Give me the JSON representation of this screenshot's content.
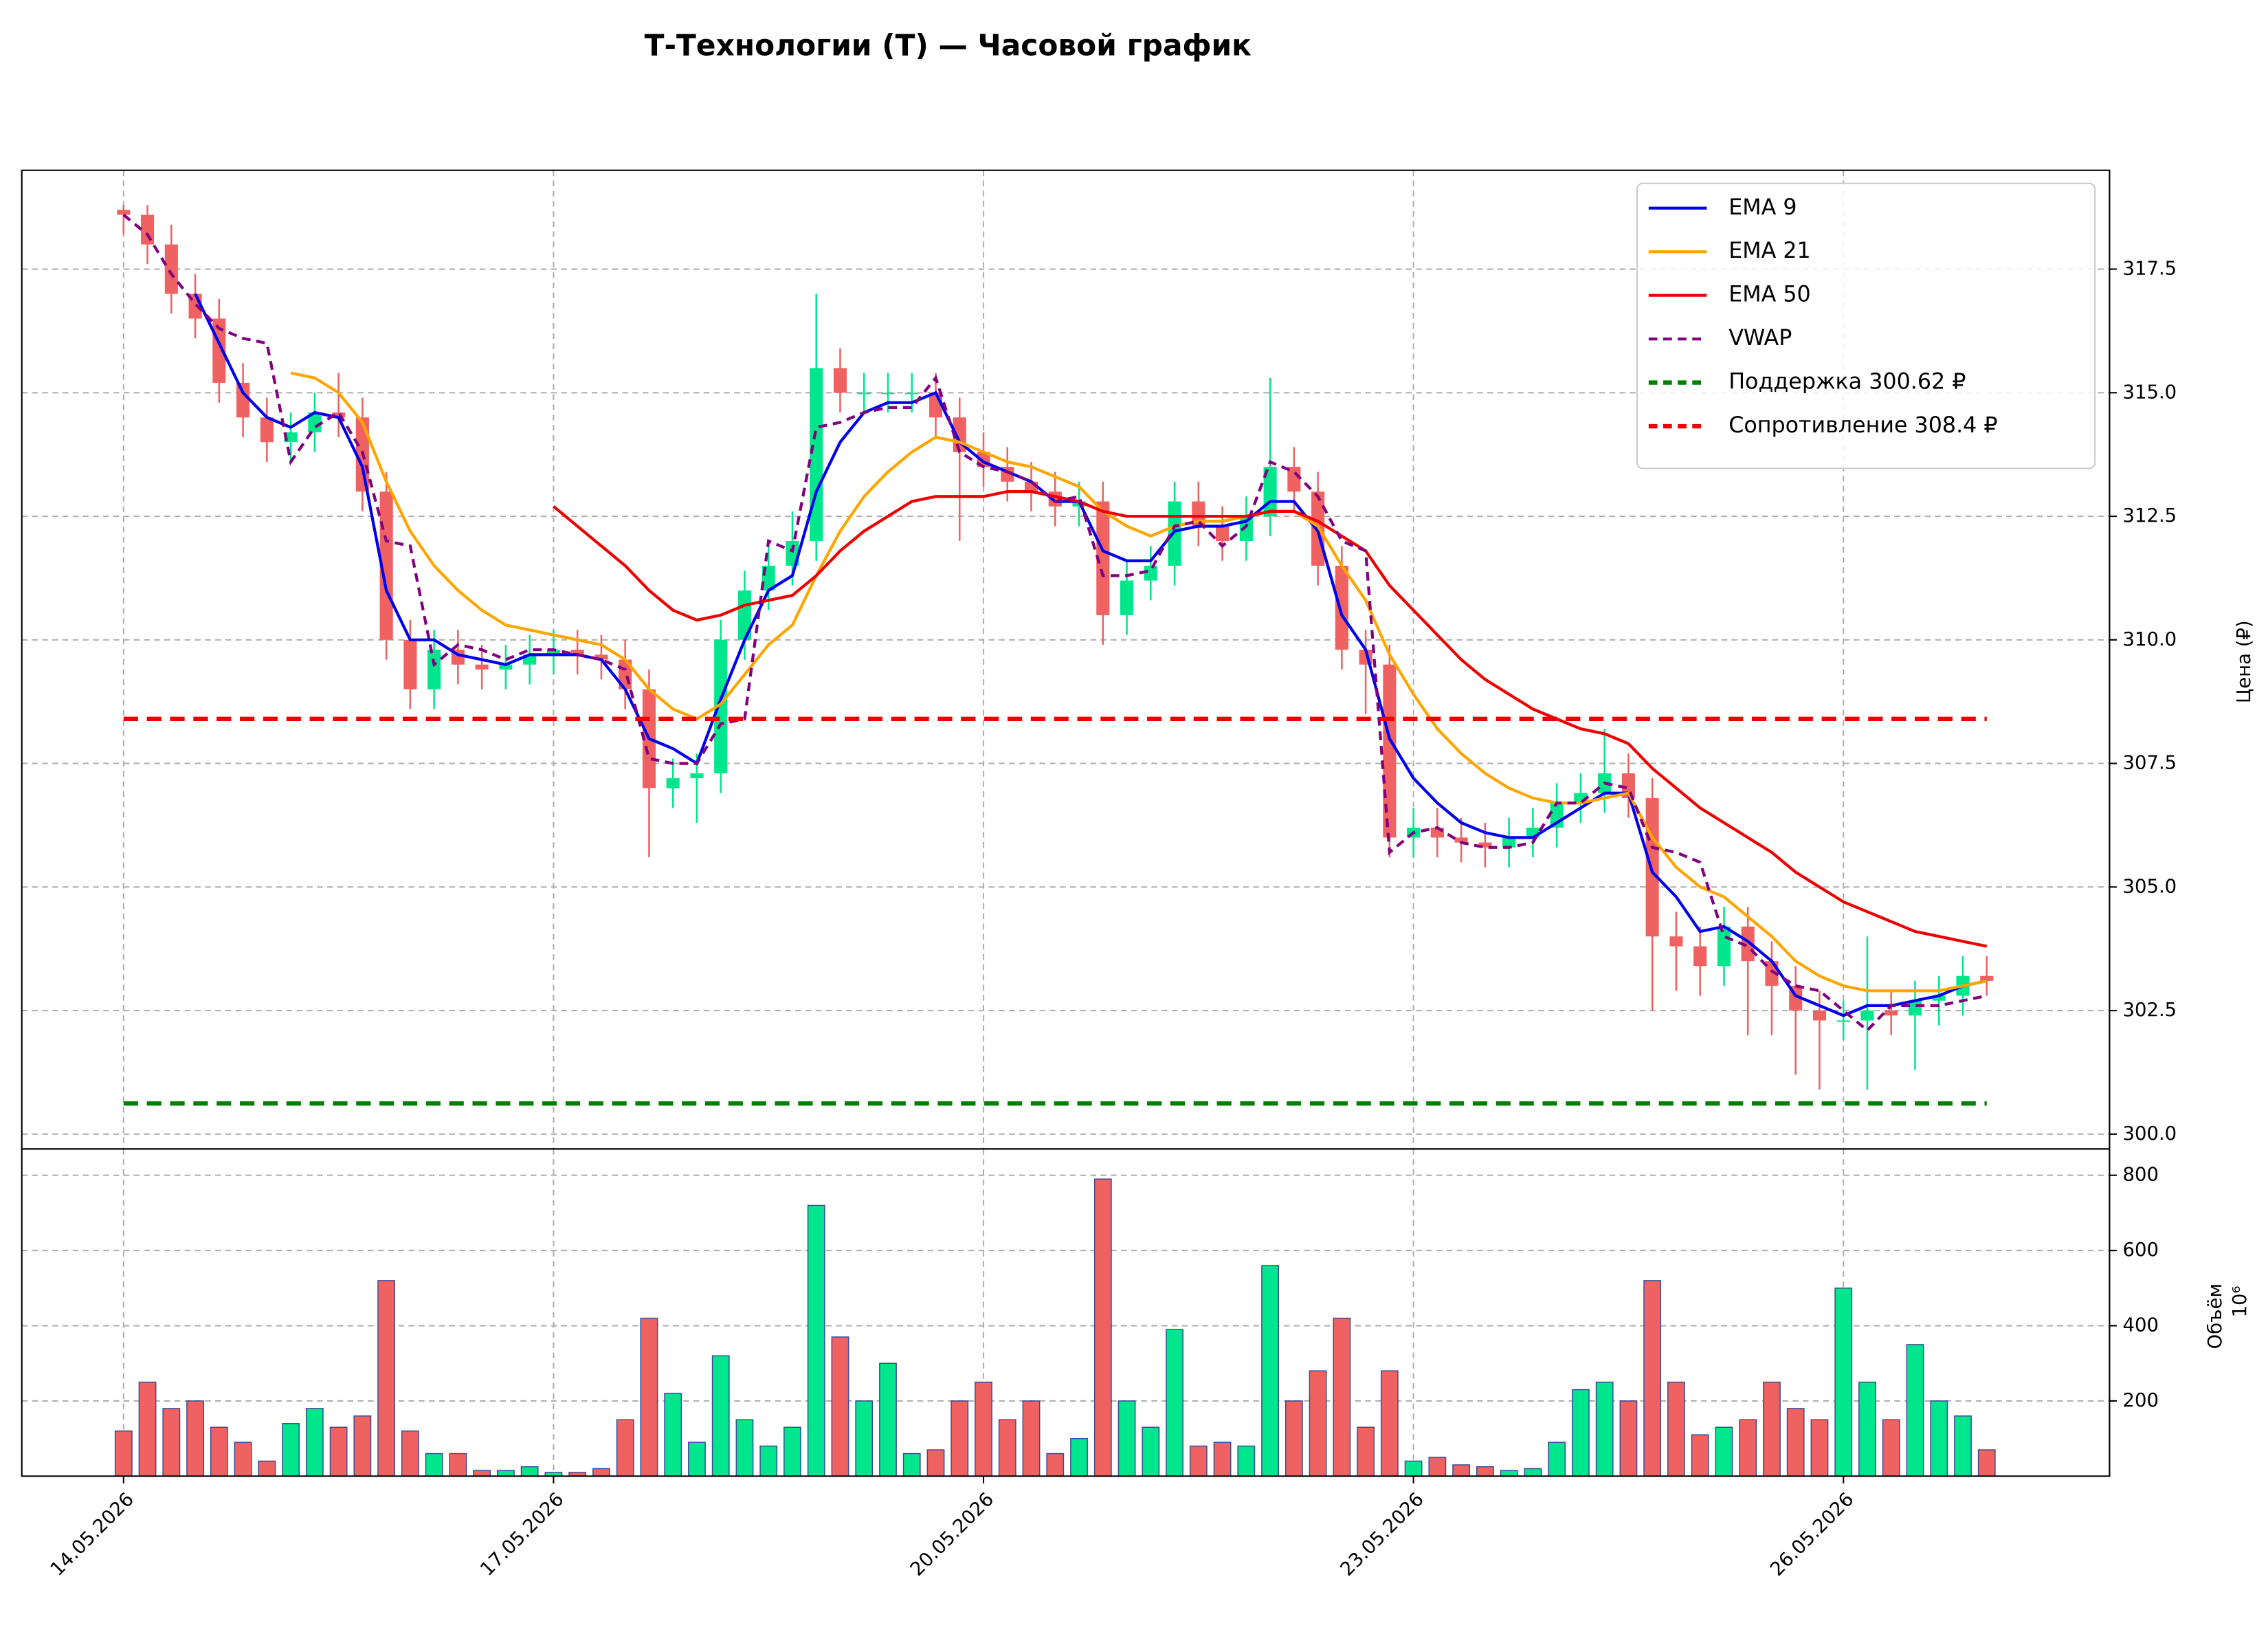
{
  "chart_data": {
    "type": "candlestick",
    "title": "Т-Технологии (T) — Часовой график",
    "ylabel": "Цена (₽)",
    "categories": [
      "14.05.2026",
      null,
      null,
      null,
      null,
      null,
      null,
      null,
      null,
      null,
      null,
      null,
      null,
      null,
      null,
      null,
      null,
      null,
      "17.05.2026",
      null,
      null,
      null,
      null,
      null,
      null,
      null,
      null,
      null,
      null,
      null,
      null,
      null,
      null,
      null,
      null,
      null,
      "20.05.2026",
      null,
      null,
      null,
      null,
      null,
      null,
      null,
      null,
      null,
      null,
      null,
      null,
      null,
      null,
      null,
      null,
      null,
      "23.05.2026",
      null,
      null,
      null,
      null,
      null,
      null,
      null,
      null,
      null,
      null,
      null,
      null,
      null,
      null,
      null,
      null,
      null,
      "26.05.2026",
      null,
      null,
      null,
      null,
      null,
      null
    ],
    "open": [
      318.7,
      318.6,
      318.0,
      317.0,
      316.5,
      315.2,
      314.5,
      314.0,
      314.2,
      314.6,
      314.5,
      313.0,
      310.0,
      309.0,
      309.8,
      309.5,
      309.4,
      309.5,
      309.7,
      309.8,
      309.7,
      309.6,
      309.0,
      307.0,
      307.2,
      307.3,
      310.0,
      311.0,
      311.5,
      312.0,
      315.5,
      315.0,
      315.0,
      315.0,
      315.0,
      314.5,
      313.8,
      313.5,
      313.2,
      313.0,
      312.7,
      312.8,
      310.5,
      311.2,
      311.5,
      312.8,
      312.3,
      312.0,
      312.5,
      313.5,
      313.0,
      311.5,
      309.8,
      309.5,
      306.0,
      306.2,
      306.0,
      305.9,
      305.8,
      306.0,
      306.2,
      306.7,
      306.9,
      307.3,
      306.8,
      304.0,
      303.8,
      303.4,
      304.2,
      303.5,
      303.0,
      302.5,
      302.3,
      302.3,
      302.5,
      302.4,
      302.7,
      302.8,
      303.2
    ],
    "high": [
      318.8,
      318.8,
      318.4,
      317.4,
      316.9,
      315.6,
      314.9,
      314.6,
      315.0,
      315.4,
      314.9,
      313.4,
      310.4,
      310.2,
      310.2,
      309.9,
      309.9,
      310.1,
      310.2,
      310.2,
      310.1,
      310.0,
      309.4,
      307.6,
      307.7,
      310.4,
      311.4,
      311.9,
      312.6,
      317.0,
      315.9,
      315.4,
      315.4,
      315.4,
      315.4,
      314.9,
      314.2,
      313.9,
      313.6,
      313.4,
      313.2,
      313.2,
      311.6,
      311.9,
      313.2,
      313.2,
      312.7,
      312.9,
      315.3,
      313.9,
      313.4,
      311.9,
      310.2,
      309.9,
      306.6,
      306.6,
      306.4,
      306.3,
      306.4,
      306.6,
      307.1,
      307.3,
      308.2,
      307.7,
      307.2,
      304.5,
      304.2,
      304.6,
      304.6,
      303.9,
      303.4,
      302.9,
      302.7,
      304.0,
      302.9,
      303.1,
      303.2,
      303.6,
      303.6
    ],
    "low": [
      318.2,
      317.6,
      316.6,
      316.1,
      314.8,
      314.1,
      313.6,
      313.6,
      313.8,
      314.1,
      312.6,
      309.6,
      308.6,
      308.6,
      309.1,
      309.0,
      309.0,
      309.1,
      309.3,
      309.3,
      309.2,
      308.6,
      305.6,
      306.6,
      306.3,
      306.9,
      309.6,
      310.6,
      311.1,
      311.6,
      314.6,
      314.6,
      314.6,
      314.6,
      314.1,
      312.0,
      313.1,
      312.8,
      312.6,
      312.3,
      312.3,
      309.9,
      310.1,
      310.8,
      311.1,
      311.9,
      311.6,
      311.6,
      312.1,
      312.6,
      311.1,
      309.4,
      308.5,
      305.6,
      305.6,
      305.6,
      305.5,
      305.4,
      305.4,
      305.6,
      305.8,
      306.3,
      306.5,
      306.4,
      302.5,
      302.9,
      302.8,
      303.0,
      302.0,
      302.0,
      301.2,
      300.9,
      301.9,
      300.9,
      302.0,
      301.3,
      302.2,
      302.4,
      302.8
    ],
    "close": [
      318.6,
      318.0,
      317.0,
      316.5,
      315.2,
      314.5,
      314.0,
      314.2,
      314.6,
      314.5,
      313.0,
      310.0,
      309.0,
      309.8,
      309.5,
      309.4,
      309.5,
      309.7,
      309.8,
      309.7,
      309.6,
      309.0,
      307.0,
      307.2,
      307.3,
      310.0,
      311.0,
      311.5,
      312.0,
      315.5,
      315.0,
      315.0,
      315.0,
      315.0,
      314.5,
      313.8,
      313.5,
      313.2,
      313.0,
      312.7,
      312.8,
      310.5,
      311.2,
      311.5,
      312.8,
      312.3,
      312.0,
      312.5,
      313.5,
      313.0,
      311.5,
      309.8,
      309.5,
      306.0,
      306.2,
      306.0,
      305.9,
      305.8,
      306.0,
      306.2,
      306.7,
      306.9,
      307.3,
      306.8,
      304.0,
      303.8,
      303.4,
      304.2,
      303.5,
      303.0,
      302.5,
      302.3,
      302.3,
      302.5,
      302.4,
      302.7,
      302.8,
      303.2,
      303.1
    ],
    "up_color": "#00e68c",
    "down_color": "#f06262",
    "series": [
      {
        "name": "EMA 9",
        "color": "#0000ee",
        "linestyle": "solid",
        "values": [
          null,
          null,
          null,
          317.0,
          316.0,
          315.0,
          314.5,
          314.3,
          314.6,
          314.5,
          313.5,
          311.0,
          310.0,
          310.0,
          309.7,
          309.6,
          309.5,
          309.7,
          309.7,
          309.7,
          309.6,
          309.0,
          308.0,
          307.8,
          307.5,
          308.8,
          310.0,
          311.0,
          311.3,
          313.0,
          314.0,
          314.6,
          314.8,
          314.8,
          315.0,
          314.0,
          313.6,
          313.4,
          313.2,
          312.8,
          312.8,
          311.8,
          311.6,
          311.6,
          312.2,
          312.3,
          312.3,
          312.4,
          312.8,
          312.8,
          312.2,
          310.5,
          309.8,
          308.0,
          307.2,
          306.7,
          306.3,
          306.1,
          306.0,
          306.0,
          306.3,
          306.6,
          306.9,
          306.9,
          305.3,
          304.8,
          304.1,
          304.2,
          303.9,
          303.5,
          302.8,
          302.6,
          302.4,
          302.6,
          302.6,
          302.7,
          302.8,
          303.0,
          303.1
        ]
      },
      {
        "name": "EMA 21",
        "color": "#ffa500",
        "linestyle": "solid",
        "values": [
          null,
          null,
          null,
          null,
          null,
          null,
          null,
          315.4,
          315.3,
          315.0,
          314.4,
          313.2,
          312.2,
          311.5,
          311.0,
          310.6,
          310.3,
          310.2,
          310.1,
          310.0,
          309.9,
          309.6,
          309.0,
          308.6,
          308.4,
          308.7,
          309.3,
          309.9,
          310.3,
          311.3,
          312.2,
          312.9,
          313.4,
          313.8,
          314.1,
          314.0,
          313.8,
          313.6,
          313.5,
          313.3,
          313.1,
          312.6,
          312.3,
          312.1,
          312.3,
          312.4,
          312.4,
          312.5,
          312.6,
          312.6,
          312.3,
          311.5,
          310.8,
          309.7,
          308.9,
          308.2,
          307.7,
          307.3,
          307.0,
          306.8,
          306.7,
          306.7,
          306.8,
          306.9,
          306.0,
          305.4,
          305.0,
          304.8,
          304.4,
          304.0,
          303.5,
          303.2,
          303.0,
          302.9,
          302.9,
          302.9,
          302.9,
          303.0,
          303.1
        ]
      },
      {
        "name": "EMA 50",
        "color": "#ee0000",
        "linestyle": "solid",
        "values": [
          null,
          null,
          null,
          null,
          null,
          null,
          null,
          null,
          null,
          null,
          null,
          null,
          null,
          null,
          null,
          null,
          null,
          null,
          312.7,
          312.3,
          311.9,
          311.5,
          311.0,
          310.6,
          310.4,
          310.5,
          310.7,
          310.8,
          310.9,
          311.3,
          311.8,
          312.2,
          312.5,
          312.8,
          312.9,
          312.9,
          312.9,
          313.0,
          313.0,
          312.9,
          312.8,
          312.6,
          312.5,
          312.5,
          312.5,
          312.5,
          312.5,
          312.5,
          312.6,
          312.6,
          312.4,
          312.1,
          311.8,
          311.1,
          310.6,
          310.1,
          309.6,
          309.2,
          308.9,
          308.6,
          308.4,
          308.2,
          308.1,
          307.9,
          307.4,
          307.0,
          306.6,
          306.3,
          306.0,
          305.7,
          305.3,
          305.0,
          304.7,
          304.5,
          304.3,
          304.1,
          304.0,
          303.9,
          303.8
        ]
      },
      {
        "name": "VWAP",
        "color": "#800080",
        "linestyle": "dashed",
        "values": [
          318.6,
          318.2,
          317.4,
          316.8,
          316.3,
          316.1,
          316.0,
          313.6,
          314.3,
          314.6,
          313.8,
          312.0,
          311.9,
          309.5,
          309.9,
          309.8,
          309.6,
          309.8,
          309.8,
          309.7,
          309.6,
          309.4,
          307.6,
          307.5,
          307.5,
          308.3,
          308.4,
          312.0,
          311.8,
          314.3,
          314.4,
          314.6,
          314.7,
          314.7,
          315.3,
          313.8,
          313.5,
          313.4,
          313.2,
          312.8,
          312.9,
          311.3,
          311.3,
          311.4,
          312.3,
          312.4,
          311.9,
          312.3,
          313.6,
          313.4,
          312.9,
          312.0,
          311.8,
          305.7,
          306.1,
          306.2,
          305.9,
          305.8,
          305.8,
          305.9,
          306.7,
          306.7,
          307.1,
          307.0,
          305.8,
          305.7,
          305.5,
          304.0,
          303.8,
          303.3,
          303.0,
          302.9,
          302.5,
          302.1,
          302.6,
          302.6,
          302.6,
          302.7,
          302.8
        ]
      }
    ],
    "levels": [
      {
        "name": "Поддержка 300.62 ₽",
        "value": 300.62,
        "color": "#008000",
        "linestyle": "dashed"
      },
      {
        "name": "Сопротивление 308.4 ₽",
        "value": 308.4,
        "color": "#ee0000",
        "linestyle": "dashed"
      }
    ],
    "ylim": [
      299.7,
      319.5
    ],
    "yticks": [
      {
        "value": 300,
        "label": "300.0"
      },
      302.5,
      {
        "value": 305,
        "label": "305.0"
      },
      307.5,
      {
        "value": 310,
        "label": "310.0"
      },
      312.5,
      {
        "value": 315,
        "label": "315.0"
      },
      317.5
    ],
    "volume": {
      "ylabel": "Объём",
      "scale_label": "10⁶",
      "ylim": [
        0,
        870
      ],
      "yticks": [
        200,
        400,
        600,
        800
      ],
      "values": [
        120,
        250,
        180,
        200,
        130,
        90,
        40,
        140,
        180,
        130,
        160,
        520,
        120,
        60,
        60,
        15,
        15,
        25,
        10,
        10,
        20,
        150,
        420,
        220,
        90,
        320,
        150,
        80,
        130,
        720,
        370,
        200,
        300,
        60,
        70,
        200,
        250,
        150,
        200,
        60,
        100,
        790,
        200,
        130,
        390,
        80,
        90,
        80,
        560,
        200,
        280,
        420,
        130,
        280,
        40,
        50,
        30,
        25,
        15,
        20,
        90,
        230,
        250,
        200,
        520,
        250,
        110,
        130,
        150,
        250,
        180,
        150,
        500,
        250,
        150,
        350,
        200,
        160,
        70
      ]
    },
    "grid": true,
    "legend": "upper right"
  }
}
